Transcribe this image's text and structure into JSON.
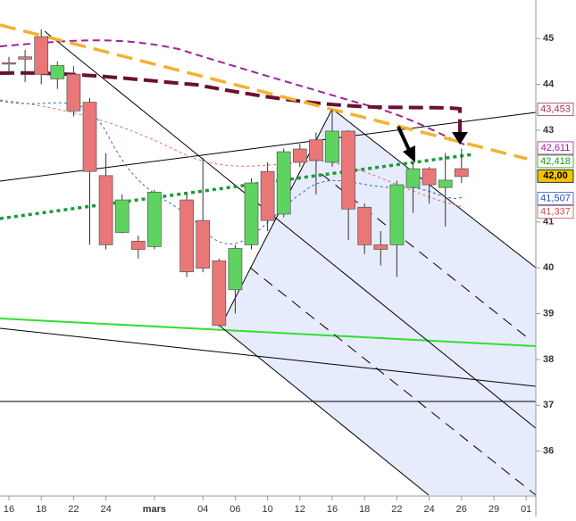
{
  "chart_data": {
    "type": "candlestick",
    "categories": [
      "16",
      null,
      "18",
      null,
      "22",
      null,
      "24",
      null,
      null,
      "mars",
      null,
      null,
      "04",
      null,
      "06",
      null,
      "10",
      null,
      "12",
      null,
      "16",
      null,
      "18",
      null,
      "22",
      null,
      "24",
      null,
      "26",
      null,
      "29",
      null,
      "01"
    ],
    "open": [
      44.47,
      44.6,
      45.04,
      44.12,
      44.22,
      43.61,
      42.01,
      40.77,
      40.58,
      40.46,
      null,
      41.48,
      41.03,
      40.15,
      39.52,
      40.5,
      42.1,
      41.17,
      42.59,
      42.79,
      42.3,
      42.98,
      41.32,
      40.5,
      40.5,
      41.75,
      42.16,
      41.75,
      42.16,
      null,
      null,
      null,
      null
    ],
    "high": [
      44.6,
      44.75,
      45.2,
      44.5,
      44.4,
      43.7,
      42.5,
      41.6,
      40.7,
      41.7,
      null,
      41.6,
      42.4,
      40.2,
      40.5,
      41.95,
      42.3,
      42.6,
      42.7,
      42.95,
      43.45,
      43.0,
      41.4,
      40.8,
      41.9,
      42.3,
      42.2,
      42.5,
      42.6,
      null,
      null,
      null,
      null
    ],
    "low": [
      44.2,
      44.05,
      44.0,
      43.9,
      43.3,
      40.5,
      40.4,
      40.75,
      40.2,
      40.4,
      null,
      39.8,
      39.9,
      38.7,
      39.0,
      40.4,
      40.8,
      41.1,
      42.2,
      41.6,
      42.2,
      40.6,
      40.3,
      40.05,
      39.8,
      41.2,
      41.4,
      40.9,
      41.85,
      null,
      null,
      null,
      null
    ],
    "close": [
      44.45,
      44.55,
      44.22,
      44.41,
      43.42,
      42.1,
      40.5,
      41.48,
      40.4,
      41.65,
      null,
      39.91,
      39.99,
      38.74,
      40.42,
      41.85,
      41.03,
      42.53,
      42.3,
      42.34,
      42.98,
      41.28,
      40.5,
      40.4,
      41.81,
      42.16,
      41.81,
      41.91,
      41.99,
      null,
      null,
      null,
      null
    ],
    "up_color": "#5fd35f",
    "down_color": "#e97777",
    "ylim": [
      35.04,
      45.84
    ],
    "yticks": [
      36,
      37,
      38,
      39,
      40,
      41,
      43,
      44,
      45
    ],
    "price_labels": [
      {
        "value": 43.453,
        "label": "43,453",
        "color": "#a0304f",
        "background": "#ffffff"
      },
      {
        "value": 42.611,
        "label": "42,611",
        "color": "#a020a0",
        "background": "#ffffff"
      },
      {
        "value": 42.418,
        "label": "42,418",
        "color": "#1a9a1a",
        "background": "#ffffff"
      },
      {
        "value": 42.0,
        "label": "42,00",
        "color": "#000000",
        "background": "#f5c400"
      },
      {
        "value": 41.507,
        "label": "41,507",
        "color": "#2050c0",
        "background": "#ffffff"
      },
      {
        "value": 41.337,
        "label": "41,337",
        "color": "#d05050",
        "background": "#ffffff"
      }
    ]
  }
}
